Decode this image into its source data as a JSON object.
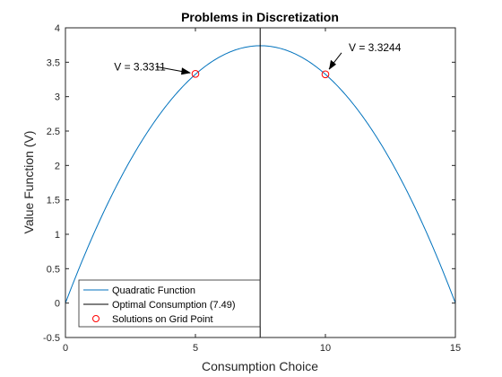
{
  "chart_data": {
    "type": "line",
    "title": "Problems in Discretization",
    "xlabel": "Consumption Choice",
    "ylabel": "Value Function (V)",
    "xlim": [
      0,
      15
    ],
    "ylim": [
      -0.5,
      4
    ],
    "xticks": [
      0,
      5,
      10,
      15
    ],
    "xtick_labels": [
      "0",
      "5",
      "10",
      "15"
    ],
    "yticks": [
      -0.5,
      0,
      0.5,
      1,
      1.5,
      2,
      2.5,
      3,
      3.5,
      4
    ],
    "ytick_labels": [
      "-0.5",
      "0",
      "0.5",
      "1",
      "1.5",
      "2",
      "2.5",
      "3",
      "3.5",
      "4"
    ],
    "grid": false,
    "legend_position": "bottom-left",
    "series": [
      {
        "name": "Quadratic Function",
        "kind": "curve",
        "color": "#0072BD",
        "x": [
          0,
          0.5,
          1,
          1.5,
          2,
          2.5,
          3,
          3.5,
          4,
          4.5,
          5,
          5.5,
          6,
          6.5,
          7,
          7.49,
          8,
          8.5,
          9,
          9.5,
          10,
          10.5,
          11,
          11.5,
          12,
          12.5,
          13,
          13.5,
          14,
          14.5,
          15
        ],
        "y": [
          0,
          0.49,
          0.93,
          1.34,
          1.71,
          2.04,
          2.33,
          2.59,
          2.8,
          2.98,
          3.12,
          3.23,
          3.3,
          3.32,
          3.33,
          3.74,
          3.33,
          3.32,
          3.3,
          3.23,
          3.12,
          2.98,
          2.8,
          2.59,
          2.33,
          2.04,
          1.71,
          1.34,
          0.93,
          0.49,
          0
        ]
      },
      {
        "name": "Optimal Consumption (7.49)",
        "kind": "vline",
        "color": "#000000",
        "x": 7.49
      },
      {
        "name": "Solutions on Grid Point",
        "kind": "markers",
        "color": "#FF0000",
        "points": [
          {
            "x": 5,
            "y": 3.3311
          },
          {
            "x": 10,
            "y": 3.3244
          }
        ]
      }
    ],
    "annotations": [
      {
        "text": "V = 3.3311",
        "x": 5,
        "y": 3.3311
      },
      {
        "text": "V = 3.3244",
        "x": 10,
        "y": 3.3244
      }
    ]
  }
}
